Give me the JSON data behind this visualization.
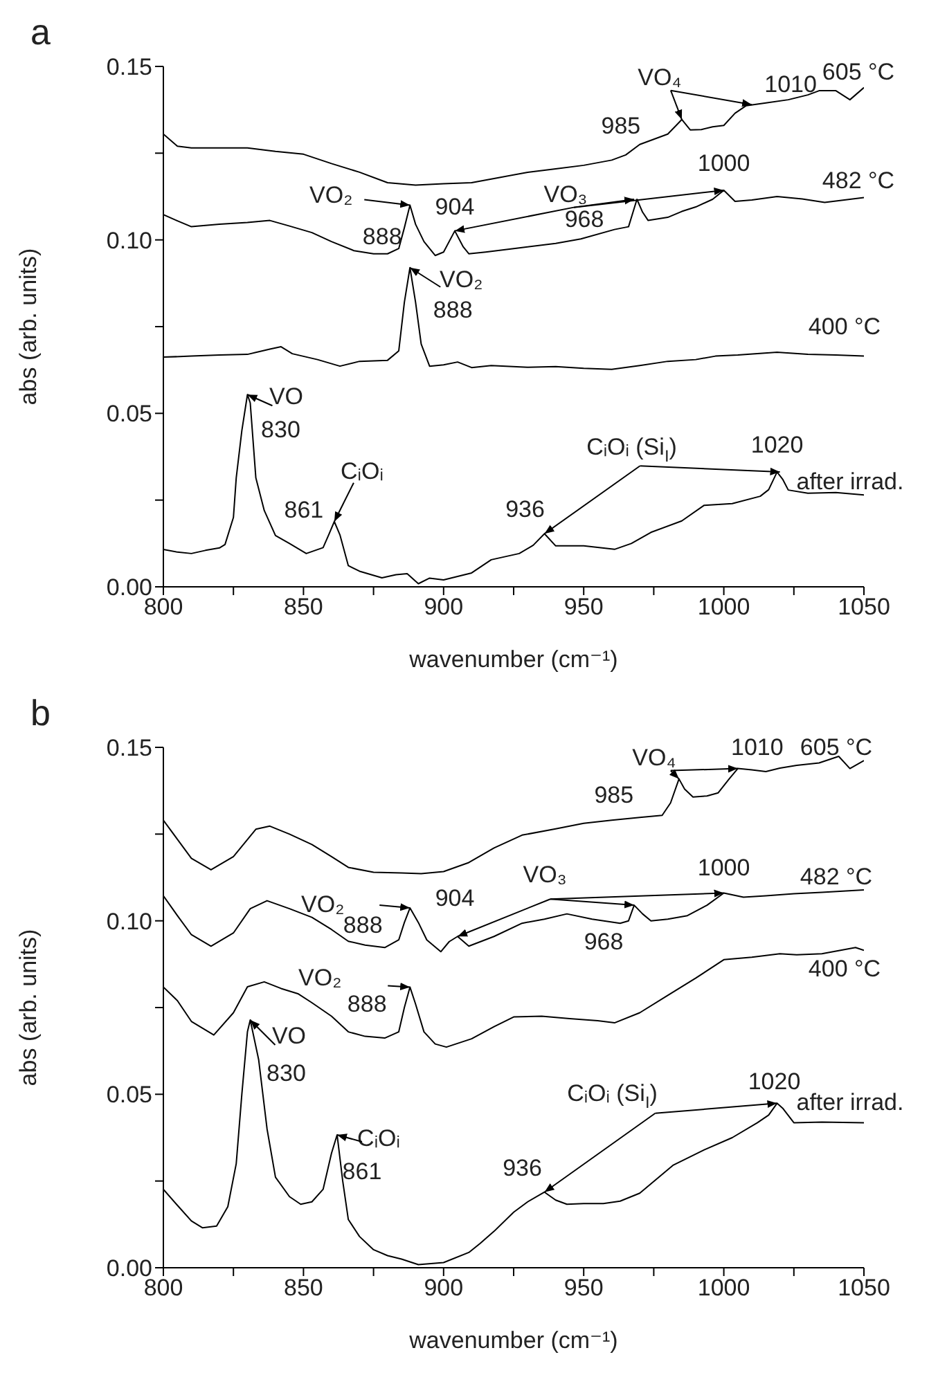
{
  "chart_data": [
    {
      "type": "line",
      "title": "a",
      "xlabel": "wavenumber (cm⁻¹)",
      "ylabel": "abs (arb. units)",
      "xlim": [
        800,
        1050
      ],
      "ylim": [
        0,
        0.15
      ],
      "xticks": [
        800,
        {
          "value": 825,
          "label": null
        },
        850,
        {
          "value": 875,
          "label": null
        },
        900,
        {
          "value": 925,
          "label": null
        },
        950,
        {
          "value": 975,
          "label": null
        },
        1000,
        {
          "value": 1025,
          "label": null
        },
        1050
      ],
      "yticks": [
        {
          "value": 0,
          "label": "0.00"
        },
        {
          "value": 0.025,
          "label": null
        },
        {
          "value": 0.05,
          "label": "0.05"
        },
        {
          "value": 0.075,
          "label": null
        },
        {
          "value": 0.1,
          "label": "0.10"
        },
        {
          "value": 0.125,
          "label": null
        },
        {
          "value": 0.15,
          "label": "0.15"
        }
      ],
      "series": [
        {
          "name": "605 °C",
          "color": "#000000",
          "x": [
            800,
            805,
            810,
            820,
            830,
            840,
            850,
            860,
            870,
            880,
            890,
            900,
            910,
            920,
            930,
            940,
            950,
            960,
            965,
            970,
            975,
            980,
            983,
            985,
            988,
            992,
            996,
            1000,
            1004,
            1008,
            1015,
            1023,
            1030,
            1034,
            1040,
            1045,
            1050
          ],
          "values": [
            0.1305,
            0.127,
            0.1265,
            0.1265,
            0.1265,
            0.1255,
            0.1247,
            0.122,
            0.1195,
            0.1165,
            0.1158,
            0.1162,
            0.1165,
            0.118,
            0.1195,
            0.1205,
            0.1215,
            0.123,
            0.1245,
            0.1275,
            0.129,
            0.1305,
            0.133,
            0.1347,
            0.1317,
            0.1318,
            0.1326,
            0.133,
            0.1365,
            0.1387,
            0.1395,
            0.1404,
            0.1418,
            0.143,
            0.143,
            0.1404,
            0.1439
          ]
        },
        {
          "name": "482 °C",
          "color": "#000000",
          "x": [
            800,
            805,
            810,
            820,
            830,
            838,
            845,
            853,
            860,
            868,
            875,
            880,
            884,
            886,
            888,
            890,
            893,
            897,
            900,
            904,
            907,
            909,
            915,
            927,
            940,
            949,
            961,
            966,
            969,
            971,
            973,
            980,
            985,
            990,
            996,
            1000,
            1004,
            1010,
            1019,
            1028,
            1036,
            1043,
            1050
          ],
          "values": [
            0.1073,
            0.1055,
            0.1038,
            0.1045,
            0.105,
            0.1056,
            0.104,
            0.1021,
            0.0995,
            0.0969,
            0.096,
            0.096,
            0.0975,
            0.1035,
            0.11,
            0.1045,
            0.0995,
            0.0955,
            0.0965,
            0.1026,
            0.098,
            0.096,
            0.0965,
            0.0977,
            0.099,
            0.1003,
            0.103,
            0.1038,
            0.1117,
            0.108,
            0.1056,
            0.1065,
            0.1082,
            0.1095,
            0.1117,
            0.1143,
            0.1111,
            0.1115,
            0.1125,
            0.1118,
            0.1108,
            0.1115,
            0.1122
          ]
        },
        {
          "name": "400 °C",
          "color": "#000000",
          "x": [
            800,
            810,
            820,
            830,
            838,
            842,
            846,
            855,
            863,
            870,
            880,
            884,
            886,
            888,
            890,
            892,
            895,
            900,
            905,
            910,
            917,
            930,
            940,
            950,
            960,
            970,
            980,
            990,
            997,
            1005,
            1019,
            1030,
            1040,
            1050
          ],
          "values": [
            0.0662,
            0.0665,
            0.0668,
            0.067,
            0.0685,
            0.0692,
            0.0672,
            0.0655,
            0.0636,
            0.065,
            0.0653,
            0.068,
            0.082,
            0.092,
            0.082,
            0.07,
            0.0636,
            0.064,
            0.0648,
            0.0632,
            0.0638,
            0.0633,
            0.0635,
            0.063,
            0.0627,
            0.0638,
            0.065,
            0.0655,
            0.0665,
            0.0668,
            0.0676,
            0.067,
            0.0668,
            0.0665
          ]
        },
        {
          "name": "after irrad.",
          "color": "#000000",
          "x": [
            800,
            805,
            810,
            815,
            820,
            822,
            825,
            826,
            828,
            830,
            831,
            833,
            836,
            840,
            845,
            851,
            857,
            859,
            861,
            863,
            866,
            870,
            878,
            883,
            887,
            891,
            895,
            900,
            910,
            917,
            927,
            932,
            936,
            940,
            950,
            961,
            967,
            974,
            985,
            993,
            1003,
            1013,
            1016,
            1019,
            1021,
            1023,
            1030,
            1040,
            1050
          ],
          "values": [
            0.0108,
            0.01,
            0.0096,
            0.0105,
            0.0112,
            0.0122,
            0.02,
            0.0314,
            0.045,
            0.0554,
            0.053,
            0.0314,
            0.022,
            0.0148,
            0.0125,
            0.0096,
            0.0113,
            0.015,
            0.0188,
            0.015,
            0.0061,
            0.0045,
            0.0026,
            0.0035,
            0.0038,
            0.0009,
            0.0025,
            0.002,
            0.004,
            0.0078,
            0.0096,
            0.012,
            0.0153,
            0.0118,
            0.0118,
            0.0108,
            0.0125,
            0.0157,
            0.019,
            0.0235,
            0.024,
            0.0261,
            0.028,
            0.0331,
            0.031,
            0.0279,
            0.027,
            0.0272,
            0.0265
          ]
        }
      ],
      "annotations": [
        {
          "text": "VO₄",
          "x": 985,
          "y": 0.1347
        },
        {
          "text": "985",
          "x": 985,
          "y": 0.1347
        },
        {
          "text": "1010",
          "x": 1010,
          "y": 0.139
        },
        {
          "text": "VO₂",
          "x": 888,
          "y": 0.11
        },
        {
          "text": "888",
          "x": 888,
          "y": 0.11
        },
        {
          "text": "904",
          "x": 904,
          "y": 0.1026
        },
        {
          "text": "VO₃",
          "x": 904,
          "y": 0.1026
        },
        {
          "text": "968",
          "x": 968,
          "y": 0.1117
        },
        {
          "text": "1000",
          "x": 1000,
          "y": 0.1143
        },
        {
          "text": "VO₂",
          "x": 888,
          "y": 0.092
        },
        {
          "text": "888",
          "x": 888,
          "y": 0.092
        },
        {
          "text": "VO",
          "x": 830,
          "y": 0.0554
        },
        {
          "text": "830",
          "x": 830,
          "y": 0.0554
        },
        {
          "text": "CᵢOᵢ",
          "x": 861,
          "y": 0.0188
        },
        {
          "text": "861",
          "x": 861,
          "y": 0.0188
        },
        {
          "text": "CᵢOᵢ (Si$_{I}$)",
          "x": 936,
          "y": 0.0153
        },
        {
          "text": "936",
          "x": 936,
          "y": 0.0153
        },
        {
          "text": "1020",
          "x": 1020,
          "y": 0.0331
        }
      ]
    },
    {
      "type": "line",
      "title": "b",
      "xlabel": "wavenumber (cm⁻¹)",
      "ylabel": "abs (arb. units)",
      "xlim": [
        800,
        1050
      ],
      "ylim": [
        0,
        0.15
      ],
      "xticks": [
        800,
        {
          "value": 825,
          "label": null
        },
        850,
        {
          "value": 875,
          "label": null
        },
        900,
        {
          "value": 925,
          "label": null
        },
        950,
        {
          "value": 975,
          "label": null
        },
        1000,
        {
          "value": 1025,
          "label": null
        },
        1050
      ],
      "yticks": [
        {
          "value": 0,
          "label": "0.00"
        },
        {
          "value": 0.025,
          "label": null
        },
        {
          "value": 0.05,
          "label": "0.05"
        },
        {
          "value": 0.075,
          "label": null
        },
        {
          "value": 0.1,
          "label": "0.10"
        },
        {
          "value": 0.125,
          "label": null
        },
        {
          "value": 0.15,
          "label": "0.15"
        }
      ],
      "series": [
        {
          "name": "605 °C",
          "color": "#000000",
          "x": [
            800,
            805,
            810,
            817,
            825,
            833,
            838,
            845,
            853,
            860,
            866,
            875,
            885,
            892,
            900,
            909,
            918,
            928,
            940,
            950,
            960,
            970,
            978,
            981,
            984,
            986,
            989,
            994,
            998,
            1002,
            1005,
            1010,
            1015,
            1020,
            1026,
            1034,
            1041,
            1045,
            1050
          ],
          "values": [
            0.129,
            0.1235,
            0.118,
            0.1147,
            0.1185,
            0.1264,
            0.1273,
            0.125,
            0.122,
            0.1185,
            0.1154,
            0.114,
            0.1138,
            0.1136,
            0.1142,
            0.1168,
            0.121,
            0.1247,
            0.1265,
            0.1281,
            0.129,
            0.1298,
            0.1304,
            0.134,
            0.1409,
            0.138,
            0.1357,
            0.136,
            0.1369,
            0.141,
            0.1439,
            0.1435,
            0.143,
            0.144,
            0.1448,
            0.1455,
            0.1474,
            0.1439,
            0.1462
          ]
        },
        {
          "name": "482 °C",
          "color": "#000000",
          "x": [
            800,
            805,
            810,
            817,
            825,
            831,
            837,
            845,
            853,
            860,
            866,
            872,
            879,
            884,
            886,
            888,
            891,
            894,
            899,
            902,
            905,
            909,
            918,
            928,
            936,
            944,
            953,
            963,
            966,
            968,
            971,
            974,
            980,
            987,
            994,
            1000,
            1007,
            1015,
            1025,
            1035,
            1050
          ],
          "values": [
            0.1072,
            0.1015,
            0.096,
            0.0927,
            0.0965,
            0.1035,
            0.1058,
            0.1035,
            0.101,
            0.0975,
            0.0941,
            0.093,
            0.0923,
            0.0945,
            0.0995,
            0.1037,
            0.0995,
            0.0945,
            0.0911,
            0.094,
            0.0955,
            0.0927,
            0.0955,
            0.0993,
            0.1005,
            0.102,
            0.1005,
            0.0993,
            0.1,
            0.1045,
            0.102,
            0.1,
            0.1005,
            0.1015,
            0.1045,
            0.108,
            0.1068,
            0.1072,
            0.1078,
            0.1082,
            0.1089
          ]
        },
        {
          "name": "400 °C",
          "color": "#000000",
          "x": [
            800,
            805,
            810,
            818,
            825,
            830,
            836,
            842,
            848,
            853,
            860,
            866,
            872,
            879,
            884,
            886,
            888,
            890,
            893,
            897,
            901,
            910,
            918,
            925,
            935,
            945,
            955,
            961,
            970,
            980,
            990,
            1000,
            1010,
            1020,
            1026,
            1035,
            1047,
            1050
          ],
          "values": [
            0.0809,
            0.077,
            0.071,
            0.0671,
            0.0735,
            0.081,
            0.0824,
            0.0805,
            0.079,
            0.0764,
            0.0725,
            0.068,
            0.0667,
            0.0662,
            0.068,
            0.075,
            0.0809,
            0.076,
            0.068,
            0.0645,
            0.0636,
            0.066,
            0.0695,
            0.0723,
            0.0725,
            0.0718,
            0.0712,
            0.0706,
            0.0735,
            0.0785,
            0.0835,
            0.0888,
            0.0895,
            0.0905,
            0.0902,
            0.0905,
            0.0923,
            0.0915
          ]
        },
        {
          "name": "after irrad.",
          "color": "#000000",
          "x": [
            800,
            805,
            810,
            814,
            819,
            823,
            826,
            828,
            830,
            831,
            834,
            837,
            840,
            845,
            849,
            853,
            857,
            860,
            862,
            864,
            866,
            870,
            875,
            880,
            885,
            891,
            900,
            909,
            913,
            918,
            925,
            930,
            936,
            940,
            944,
            950,
            957,
            963,
            970,
            982,
            993,
            1003,
            1012,
            1016,
            1019,
            1021,
            1025,
            1035,
            1050
          ],
          "values": [
            0.0226,
            0.018,
            0.0135,
            0.0115,
            0.012,
            0.0176,
            0.03,
            0.05,
            0.068,
            0.0714,
            0.06,
            0.04,
            0.0261,
            0.0205,
            0.0183,
            0.019,
            0.0226,
            0.033,
            0.0383,
            0.025,
            0.0139,
            0.009,
            0.0052,
            0.0035,
            0.0025,
            0.0009,
            0.0015,
            0.0044,
            0.007,
            0.0105,
            0.016,
            0.019,
            0.0218,
            0.0195,
            0.0183,
            0.0185,
            0.0185,
            0.0192,
            0.0215,
            0.0296,
            0.034,
            0.0375,
            0.0418,
            0.044,
            0.0474,
            0.046,
            0.0418,
            0.042,
            0.0418
          ]
        }
      ],
      "annotations": [
        {
          "text": "VO₄",
          "x": 984,
          "y": 0.1409
        },
        {
          "text": "985",
          "x": 984,
          "y": 0.1409
        },
        {
          "text": "1010",
          "x": 1005,
          "y": 0.1439
        },
        {
          "text": "VO₂",
          "x": 888,
          "y": 0.1037
        },
        {
          "text": "888",
          "x": 888,
          "y": 0.1037
        },
        {
          "text": "904",
          "x": 905,
          "y": 0.0955
        },
        {
          "text": "VO₃",
          "x": 905,
          "y": 0.0955
        },
        {
          "text": "968",
          "x": 968,
          "y": 0.1045
        },
        {
          "text": "1000",
          "x": 1000,
          "y": 0.108
        },
        {
          "text": "VO₂",
          "x": 888,
          "y": 0.0809
        },
        {
          "text": "888",
          "x": 888,
          "y": 0.0809
        },
        {
          "text": "VO",
          "x": 831,
          "y": 0.0714
        },
        {
          "text": "830",
          "x": 831,
          "y": 0.0714
        },
        {
          "text": "CᵢOᵢ",
          "x": 862,
          "y": 0.0383
        },
        {
          "text": "861",
          "x": 862,
          "y": 0.0383
        },
        {
          "text": "CᵢOᵢ (Si$_{I}$)",
          "x": 936,
          "y": 0.0218
        },
        {
          "text": "936",
          "x": 936,
          "y": 0.0218
        },
        {
          "text": "1020",
          "x": 1019,
          "y": 0.0474
        }
      ]
    }
  ]
}
